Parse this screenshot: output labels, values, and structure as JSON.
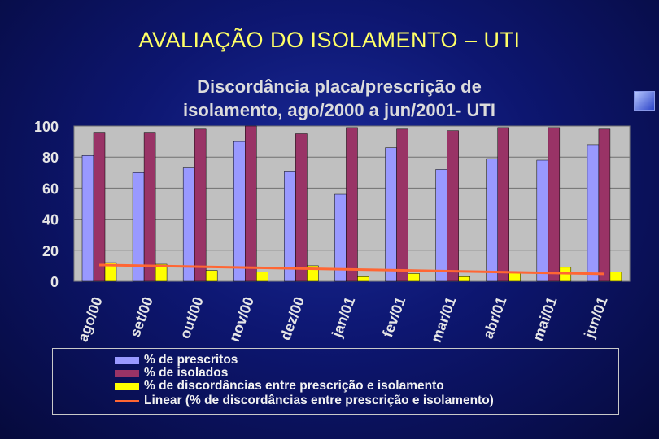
{
  "slide": {
    "title": "AVALIAÇÃO DO ISOLAMENTO – UTI"
  },
  "chart_data": {
    "type": "bar",
    "title": "Discordância placa/prescrição de isolamento, ago/2000 a jun/2001- UTI",
    "title_lines": [
      "Discordância placa/prescrição de",
      "isolamento, ago/2000 a jun/2001- UTI"
    ],
    "categories": [
      "ago/00",
      "set/00",
      "out/00",
      "nov/00",
      "dez/00",
      "jan/01",
      "fev/01",
      "mar/01",
      "abr/01",
      "mai/01",
      "jun/01"
    ],
    "series": [
      {
        "name": "% de prescritos",
        "color": "#9999ff",
        "values": [
          81,
          70,
          73,
          90,
          71,
          56,
          86,
          72,
          79,
          78,
          88
        ]
      },
      {
        "name": "% de isolados",
        "color": "#993366",
        "values": [
          96,
          96,
          98,
          100,
          95,
          99,
          98,
          97,
          99,
          99,
          98
        ]
      },
      {
        "name": "% de discordâncias entre prescrição e isolamento",
        "color": "#ffff00",
        "values": [
          12,
          11,
          7,
          6,
          10,
          3,
          5,
          3,
          6,
          9,
          6
        ]
      }
    ],
    "trendline": {
      "name": "Linear (% de discordâncias entre prescrição e isolamento)",
      "color": "#ff6633",
      "start": 10.5,
      "end": 4.8
    },
    "yticks": [
      0,
      20,
      40,
      60,
      80,
      100
    ],
    "ylim": [
      0,
      100
    ],
    "grid": true,
    "legend_position": "bottom",
    "plot_bg": "#c0c0c0"
  }
}
